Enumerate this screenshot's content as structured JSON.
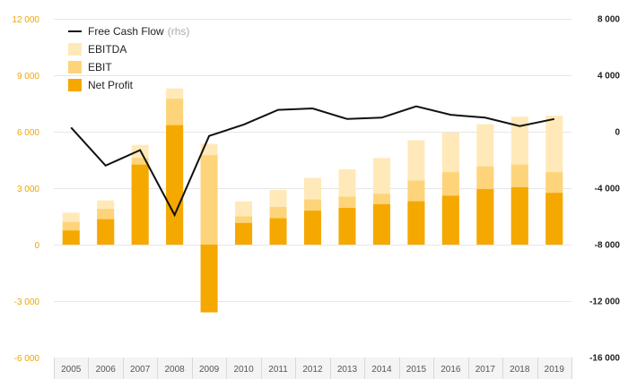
{
  "chart_data": {
    "type": "bar",
    "categories": [
      "2005",
      "2006",
      "2007",
      "2008",
      "2009",
      "2010",
      "2011",
      "2012",
      "2013",
      "2014",
      "2015",
      "2016",
      "2017",
      "2018",
      "2019"
    ],
    "series": [
      {
        "name": "EBITDA",
        "axis": "left",
        "color": "#ffe9b8",
        "values": [
          1700,
          2350,
          5300,
          8300,
          5350,
          2300,
          2900,
          3550,
          4000,
          4600,
          5550,
          5950,
          6400,
          6800,
          6850
        ]
      },
      {
        "name": "EBIT",
        "axis": "left",
        "color": "#fdd47a",
        "values": [
          1200,
          1900,
          4600,
          7750,
          4750,
          1500,
          2000,
          2400,
          2550,
          2700,
          3400,
          3850,
          4150,
          4250,
          3850
        ]
      },
      {
        "name": "Net Profit",
        "axis": "left",
        "color": "#f5a800",
        "values": [
          750,
          1350,
          4250,
          6350,
          -3600,
          1150,
          1400,
          1800,
          1950,
          2150,
          2300,
          2600,
          2950,
          3050,
          2750
        ]
      },
      {
        "name": "Free Cash Flow",
        "axis": "right",
        "color": "#111111",
        "values": [
          300,
          -2400,
          -1300,
          -5900,
          -300,
          500,
          1550,
          1650,
          900,
          1000,
          1800,
          1200,
          1000,
          400,
          900
        ]
      }
    ],
    "legend": [
      {
        "label": "Free Cash Flow",
        "suffix": "(rhs)",
        "marker": "line",
        "color": "#111111"
      },
      {
        "label": "EBITDA",
        "suffix": "",
        "marker": "box",
        "color": "#ffe9b8"
      },
      {
        "label": "EBIT",
        "suffix": "",
        "marker": "box",
        "color": "#fdd47a"
      },
      {
        "label": "Net Profit",
        "suffix": "",
        "marker": "box",
        "color": "#f5a800"
      }
    ],
    "ylim_left": [
      -6000,
      12000
    ],
    "yticks_left": [
      12000,
      9000,
      6000,
      3000,
      0,
      -3000,
      -6000
    ],
    "ytick_labels_left": [
      "12 000",
      "9 000",
      "6 000",
      "3 000",
      "0",
      "-3 000",
      "-6 000"
    ],
    "ylim_right": [
      -16000,
      8000
    ],
    "yticks_right": [
      8000,
      4000,
      0,
      -4000,
      -8000,
      -12000,
      -16000
    ],
    "ytick_labels_right": [
      "8 000",
      "4 000",
      "0",
      "-4 000",
      "-8 000",
      "-12 000",
      "-16 000"
    ],
    "grid": true,
    "legend_position": "top-left"
  }
}
